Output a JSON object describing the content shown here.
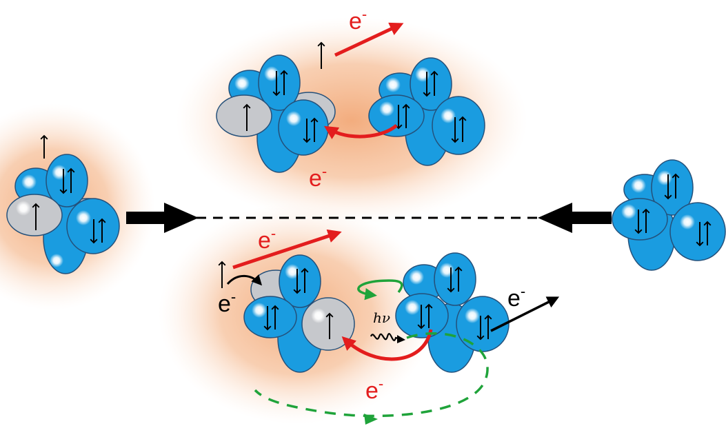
{
  "colors": {
    "orbital": "#1a9ce0",
    "orbital_edge": "#24507a",
    "empty_orbital": "#c6c8cc",
    "glow": "#f2a877",
    "electron_transfer": "#e31d1d",
    "energy_transfer": "#1fa33a",
    "spin": "#000000"
  },
  "labels": {
    "electron_symbol": "e",
    "electron_charge": "-",
    "photon": "hν"
  },
  "icons": [
    "spin-up-arrow-icon",
    "spin-pair-icon",
    "bold-arrow-icon",
    "curved-arrow-icon",
    "photon-wave-icon"
  ]
}
